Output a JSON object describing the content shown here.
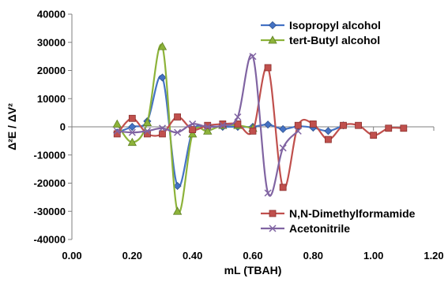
{
  "chart_data": {
    "type": "line",
    "xlabel": "mL (TBAH)",
    "ylabel": "Δ²E / ΔV²",
    "xlim": [
      0,
      1.2
    ],
    "ylim": [
      -40000,
      40000
    ],
    "xticks": [
      0,
      0.2,
      0.4,
      0.6,
      0.8,
      1.0,
      1.2
    ],
    "xtick_labels": [
      "0.00",
      "0.20",
      "0.40",
      "0.60",
      "0.80",
      "1.00",
      "1.20"
    ],
    "yticks": [
      40000,
      30000,
      20000,
      10000,
      0,
      -10000,
      -20000,
      -30000,
      -40000
    ],
    "ytick_labels": [
      "40000",
      "30000",
      "20000",
      "10000",
      "0",
      "-10000",
      "-20000",
      "-30000",
      "-40000"
    ],
    "grid": false,
    "legends": [
      {
        "placement": "top-right",
        "series": [
          0,
          1
        ]
      },
      {
        "placement": "bottom-right",
        "series": [
          2,
          3
        ]
      }
    ],
    "series": [
      {
        "name": "Isopropyl alcohol",
        "color": "#4472C4",
        "marker": "diamond",
        "points": [
          [
            0.15,
            -2000
          ],
          [
            0.2,
            0
          ],
          [
            0.25,
            2000
          ],
          [
            0.3,
            17500
          ],
          [
            0.35,
            -21000
          ],
          [
            0.4,
            -1500
          ],
          [
            0.45,
            0
          ],
          [
            0.5,
            0
          ],
          [
            0.55,
            0
          ],
          [
            0.6,
            0
          ],
          [
            0.65,
            800
          ],
          [
            0.7,
            -800
          ],
          [
            0.75,
            200
          ],
          [
            0.8,
            -300
          ],
          [
            0.85,
            -1500
          ],
          [
            0.9,
            500
          ]
        ]
      },
      {
        "name": "tert-Butyl alcohol",
        "color": "#8DB33A",
        "marker": "triangle",
        "points": [
          [
            0.15,
            1000
          ],
          [
            0.2,
            -5500
          ],
          [
            0.25,
            1500
          ],
          [
            0.3,
            28500
          ],
          [
            0.35,
            -30000
          ],
          [
            0.4,
            -2500
          ],
          [
            0.45,
            -1500
          ],
          [
            0.5,
            500
          ],
          [
            0.55,
            500
          ],
          [
            0.6,
            -500
          ]
        ]
      },
      {
        "name": "N,N-Dimethylformamide",
        "color": "#C0504D",
        "marker": "square",
        "points": [
          [
            0.15,
            -2500
          ],
          [
            0.2,
            3000
          ],
          [
            0.25,
            -2500
          ],
          [
            0.3,
            -2500
          ],
          [
            0.35,
            3500
          ],
          [
            0.4,
            -1000
          ],
          [
            0.45,
            500
          ],
          [
            0.5,
            1000
          ],
          [
            0.55,
            1000
          ],
          [
            0.6,
            -1500
          ],
          [
            0.65,
            21000
          ],
          [
            0.7,
            -21500
          ],
          [
            0.75,
            500
          ],
          [
            0.8,
            1000
          ],
          [
            0.85,
            -4500
          ],
          [
            0.9,
            500
          ],
          [
            0.95,
            500
          ],
          [
            1.0,
            -3000
          ],
          [
            1.05,
            -500
          ],
          [
            1.1,
            -500
          ]
        ]
      },
      {
        "name": "Acetonitrile",
        "color": "#8064A2",
        "marker": "x",
        "points": [
          [
            0.15,
            -1500
          ],
          [
            0.2,
            -2000
          ],
          [
            0.25,
            -1500
          ],
          [
            0.3,
            -500
          ],
          [
            0.35,
            -2000
          ],
          [
            0.4,
            1000
          ],
          [
            0.45,
            0
          ],
          [
            0.5,
            500
          ],
          [
            0.55,
            3500
          ],
          [
            0.6,
            25000
          ],
          [
            0.65,
            -23500
          ],
          [
            0.7,
            -7500
          ],
          [
            0.75,
            -1500
          ]
        ]
      }
    ]
  }
}
